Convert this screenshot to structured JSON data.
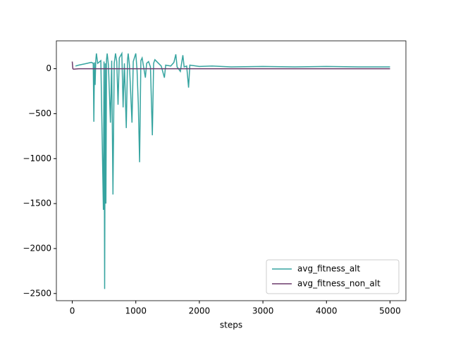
{
  "chart_data": {
    "type": "line",
    "xlabel": "steps",
    "xlim": [
      -250,
      5250
    ],
    "xticks": [
      0,
      1000,
      2000,
      3000,
      4000,
      5000
    ],
    "ylim": [
      -2580,
      310
    ],
    "yticks": [
      {
        "value": -2500,
        "label": "−2500"
      },
      {
        "value": -2000,
        "label": "−2000"
      },
      {
        "value": -1500,
        "label": "−1500"
      },
      {
        "value": -1000,
        "label": "−1000"
      },
      {
        "value": -500,
        "label": "−500"
      },
      0
    ],
    "legend": "lower right",
    "series": [
      {
        "name": "avg_fitness_alt",
        "color": "#36a4a0",
        "x": [
          50,
          100,
          200,
          300,
          330,
          340,
          350,
          360,
          370,
          380,
          400,
          450,
          490,
          500,
          510,
          520,
          530,
          540,
          550,
          570,
          600,
          620,
          640,
          660,
          680,
          700,
          720,
          740,
          780,
          800,
          820,
          850,
          870,
          880,
          900,
          940,
          960,
          1000,
          1020,
          1040,
          1060,
          1080,
          1100,
          1150,
          1170,
          1200,
          1230,
          1260,
          1280,
          1300,
          1400,
          1450,
          1470,
          1550,
          1600,
          1630,
          1650,
          1700,
          1740,
          1760,
          1800,
          1830,
          1850,
          2000,
          2200,
          2500,
          3000,
          3500,
          4000,
          4500,
          5000
        ],
        "values": [
          30,
          40,
          55,
          70,
          60,
          -590,
          70,
          -180,
          90,
          170,
          60,
          90,
          -1570,
          80,
          -2450,
          60,
          -1500,
          100,
          170,
          40,
          -600,
          90,
          -1400,
          60,
          170,
          80,
          -400,
          120,
          170,
          -430,
          60,
          -660,
          100,
          170,
          40,
          -600,
          80,
          170,
          -20,
          -400,
          -1040,
          90,
          120,
          -100,
          60,
          80,
          20,
          -740,
          60,
          100,
          30,
          -100,
          40,
          30,
          70,
          160,
          20,
          -30,
          150,
          20,
          30,
          -210,
          40,
          25,
          30,
          20,
          25,
          20,
          25,
          20,
          20
        ]
      },
      {
        "name": "avg_fitness_non_alt",
        "color": "#6b3a6b",
        "x": [
          0,
          10,
          20,
          100,
          5000
        ],
        "values": [
          80,
          0,
          -5,
          0,
          0
        ]
      }
    ]
  }
}
